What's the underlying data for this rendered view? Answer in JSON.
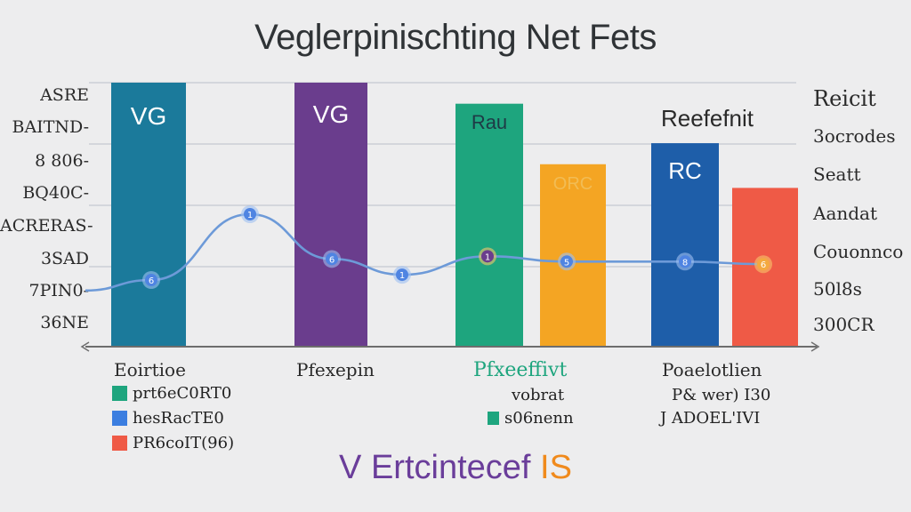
{
  "title": "Veglerpinischting Net Fets",
  "footer": {
    "part1": "V Ertcintecef",
    "part2": " IS"
  },
  "y_left_ticks": [
    "ASRE",
    "BAITND-",
    "8 806-",
    "BQ40C-",
    "ACRERAS-",
    "3SAD",
    "7PIN0-",
    "36NE"
  ],
  "y_right_ticks": [
    "Reicit",
    "3ocrodes",
    "Seatt",
    "Aandat",
    "Couonnco",
    "50l8s",
    "300CR"
  ],
  "colors": {
    "teal": "#1b7a9b",
    "purple": "#6a3d8d",
    "green": "#1ea57e",
    "orange": "#f4a523",
    "blue": "#1e5ea9",
    "red": "#ef5a46",
    "line": "#6d9ad8",
    "marker": "#4f84e2",
    "gold_marker": "#f4a940"
  },
  "chart_data": {
    "type": "bar",
    "title": "Veglerpinischting Net Fets",
    "ylim": [
      0,
      100
    ],
    "bars": [
      {
        "category": "Eoirtioe",
        "value": 100,
        "label": "VG",
        "color": "#1b7a9b"
      },
      {
        "category": "Pfexepin",
        "value": 100,
        "label": "VG",
        "color": "#6a3d8d"
      },
      {
        "category": "Pfxeeffivt",
        "value": 92,
        "label": "Rau",
        "color": "#1ea57e"
      },
      {
        "category": "Pfxeeffivt",
        "value": 69,
        "label": "ORC",
        "color": "#f4a523"
      },
      {
        "category": "Poaelotlien",
        "value": 77,
        "label": "RC",
        "color": "#1e5ea9"
      },
      {
        "category": "Poaelotlien",
        "value": 60,
        "label": "",
        "color": "#ef5a46"
      }
    ],
    "line": {
      "values": [
        21,
        25,
        50,
        33,
        27,
        34,
        32,
        32,
        31
      ],
      "point_labels": [
        "6",
        "1",
        "6",
        "1",
        "1",
        "5",
        "8",
        "6"
      ]
    },
    "annotation": "Reefefnit"
  },
  "categories": [
    {
      "label": "Eoirtioe",
      "color": "#2a2a2a"
    },
    {
      "label": "Pfexepin",
      "color": "#2a2a2a"
    },
    {
      "label": "Pfxeeffivt",
      "color": "#1ea57e"
    },
    {
      "label": "Poaelotlien",
      "color": "#2a2a2a"
    }
  ],
  "legend_left": [
    {
      "label": "prt6eC0RT0",
      "color": "#1ea57e"
    },
    {
      "label": "hesRacTE0",
      "color": "#3b7ee0"
    },
    {
      "label": "PR6coIT(96)",
      "color": "#ef5a46"
    }
  ],
  "legend_mid": [
    {
      "label": "vobrat",
      "color": ""
    },
    {
      "label": "s06nenn",
      "color": "#1ea57e"
    }
  ],
  "legend_right": [
    {
      "label": "P& wer) I30"
    },
    {
      "label": "J ADOEL'IVI"
    }
  ]
}
